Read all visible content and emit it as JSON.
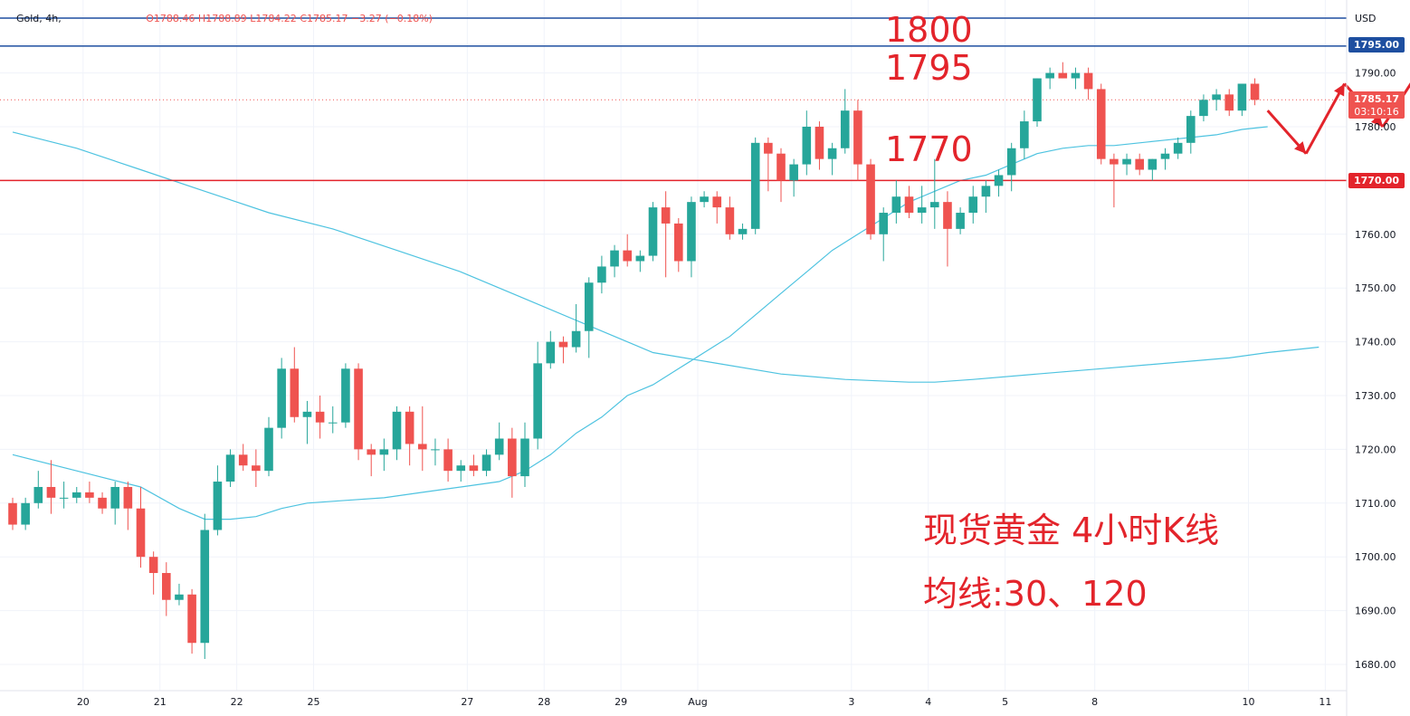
{
  "header": {
    "symbol": "Gold, 4h,",
    "open": "O1788.46",
    "high": "H1788.89",
    "low": "L1784.22",
    "close": "C1785.17",
    "change": "−3.27 (−0.18%)",
    "currency": "USD"
  },
  "annotations": {
    "level_1800": "1800",
    "level_1795": "1795",
    "level_1770": "1770",
    "caption_line1": "现货黄金 4小时K线",
    "caption_line2": "均线:30、120"
  },
  "price_badges": {
    "resistance": "1795.00",
    "current_price": "1785.17",
    "countdown": "03:10:16",
    "support": "1770.00"
  },
  "colors": {
    "up": "#26a69a",
    "down": "#ef5350",
    "ma": "#4ec3e0",
    "support_line": "#e3242b",
    "resistance_line": "#1e4fa0",
    "badge_blue": "#1e4fa0",
    "badge_red": "#e3242b",
    "annotation": "#e3242b"
  },
  "chart_data": {
    "type": "candlestick",
    "timeframe": "4h",
    "y_ticks": [
      1680,
      1690,
      1700,
      1710,
      1720,
      1730,
      1740,
      1750,
      1760,
      1770,
      1780,
      1790
    ],
    "ylim": [
      1676,
      1800
    ],
    "x_ticks": [
      {
        "label": "20",
        "bar": 5.5
      },
      {
        "label": "21",
        "bar": 11.5
      },
      {
        "label": "22",
        "bar": 17.5
      },
      {
        "label": "25",
        "bar": 23.5
      },
      {
        "label": "27",
        "bar": 35.5
      },
      {
        "label": "28",
        "bar": 41.5
      },
      {
        "label": "29",
        "bar": 47.5
      },
      {
        "label": "Aug",
        "bar": 53.5
      },
      {
        "label": "3",
        "bar": 65.5
      },
      {
        "label": "4",
        "bar": 71.5
      },
      {
        "label": "5",
        "bar": 77.5
      },
      {
        "label": "8",
        "bar": 84.5
      },
      {
        "label": "10",
        "bar": 96.5
      },
      {
        "label": "11",
        "bar": 102.5
      }
    ],
    "candles": [
      [
        1710,
        1711,
        1705,
        1706
      ],
      [
        1706,
        1711,
        1705,
        1710
      ],
      [
        1710,
        1716,
        1709,
        1713
      ],
      [
        1713,
        1718,
        1708,
        1711
      ],
      [
        1711,
        1714,
        1709,
        1711
      ],
      [
        1711,
        1713,
        1710,
        1712
      ],
      [
        1712,
        1714,
        1710,
        1711
      ],
      [
        1711,
        1712,
        1708,
        1709
      ],
      [
        1709,
        1714,
        1706,
        1713
      ],
      [
        1713,
        1714,
        1705,
        1709
      ],
      [
        1709,
        1713,
        1698,
        1700
      ],
      [
        1700,
        1701,
        1693,
        1697
      ],
      [
        1697,
        1699,
        1689,
        1692
      ],
      [
        1692,
        1695,
        1691,
        1693
      ],
      [
        1693,
        1694,
        1682,
        1684
      ],
      [
        1684,
        1708,
        1681,
        1705
      ],
      [
        1705,
        1717,
        1704,
        1714
      ],
      [
        1714,
        1720,
        1713,
        1719
      ],
      [
        1719,
        1721,
        1716,
        1717
      ],
      [
        1717,
        1720,
        1713,
        1716
      ],
      [
        1716,
        1726,
        1715,
        1724
      ],
      [
        1724,
        1737,
        1722,
        1735
      ],
      [
        1735,
        1739,
        1725,
        1726
      ],
      [
        1726,
        1729,
        1721,
        1727
      ],
      [
        1727,
        1730,
        1722,
        1725
      ],
      [
        1725,
        1728,
        1723,
        1725
      ],
      [
        1725,
        1736,
        1724,
        1735
      ],
      [
        1735,
        1736,
        1718,
        1720
      ],
      [
        1720,
        1721,
        1715,
        1719
      ],
      [
        1719,
        1722,
        1716,
        1720
      ],
      [
        1720,
        1728,
        1718,
        1727
      ],
      [
        1727,
        1728,
        1717,
        1721
      ],
      [
        1721,
        1728,
        1716,
        1720
      ],
      [
        1720,
        1722,
        1717,
        1720
      ],
      [
        1720,
        1722,
        1714,
        1716
      ],
      [
        1716,
        1718,
        1714,
        1717
      ],
      [
        1717,
        1719,
        1715,
        1716
      ],
      [
        1716,
        1720,
        1715,
        1719
      ],
      [
        1719,
        1725,
        1718,
        1722
      ],
      [
        1722,
        1724,
        1711,
        1715
      ],
      [
        1715,
        1725,
        1713,
        1722
      ],
      [
        1722,
        1740,
        1720,
        1736
      ],
      [
        1736,
        1742,
        1735,
        1740
      ],
      [
        1740,
        1741,
        1736,
        1739
      ],
      [
        1739,
        1747,
        1738,
        1742
      ],
      [
        1742,
        1752,
        1737,
        1751
      ],
      [
        1751,
        1756,
        1749,
        1754
      ],
      [
        1754,
        1758,
        1752,
        1757
      ],
      [
        1757,
        1760,
        1754,
        1755
      ],
      [
        1755,
        1757,
        1753,
        1756
      ],
      [
        1756,
        1766,
        1755,
        1765
      ],
      [
        1765,
        1768,
        1752,
        1762
      ],
      [
        1762,
        1763,
        1753,
        1755
      ],
      [
        1755,
        1767,
        1752,
        1766
      ],
      [
        1766,
        1768,
        1765,
        1767
      ],
      [
        1767,
        1768,
        1762,
        1765
      ],
      [
        1765,
        1767,
        1759,
        1760
      ],
      [
        1760,
        1762,
        1759,
        1761
      ],
      [
        1761,
        1778,
        1760,
        1777
      ],
      [
        1777,
        1778,
        1768,
        1775
      ],
      [
        1775,
        1776,
        1766,
        1770
      ],
      [
        1770,
        1774,
        1767,
        1773
      ],
      [
        1773,
        1783,
        1771,
        1780
      ],
      [
        1780,
        1781,
        1772,
        1774
      ],
      [
        1774,
        1777,
        1771,
        1776
      ],
      [
        1776,
        1787,
        1775,
        1783
      ],
      [
        1783,
        1785,
        1770,
        1773
      ],
      [
        1773,
        1774,
        1759,
        1760
      ],
      [
        1760,
        1765,
        1755,
        1764
      ],
      [
        1764,
        1770,
        1762,
        1767
      ],
      [
        1767,
        1769,
        1763,
        1764
      ],
      [
        1764,
        1769,
        1762,
        1765
      ],
      [
        1765,
        1774,
        1761,
        1766
      ],
      [
        1766,
        1768,
        1754,
        1761
      ],
      [
        1761,
        1765,
        1760,
        1764
      ],
      [
        1764,
        1769,
        1762,
        1767
      ],
      [
        1767,
        1770,
        1764,
        1769
      ],
      [
        1769,
        1772,
        1767,
        1771
      ],
      [
        1771,
        1777,
        1768,
        1776
      ],
      [
        1776,
        1783,
        1774,
        1781
      ],
      [
        1781,
        1789,
        1780,
        1789
      ],
      [
        1789,
        1791,
        1787,
        1790
      ],
      [
        1790,
        1792,
        1789,
        1789
      ],
      [
        1789,
        1791,
        1787,
        1790
      ],
      [
        1790,
        1791,
        1785,
        1787
      ],
      [
        1787,
        1788,
        1773,
        1774
      ],
      [
        1774,
        1775,
        1765,
        1773
      ],
      [
        1773,
        1775,
        1771,
        1774
      ],
      [
        1774,
        1775,
        1771,
        1772
      ],
      [
        1772,
        1774,
        1770,
        1774
      ],
      [
        1774,
        1776,
        1772,
        1775
      ],
      [
        1775,
        1778,
        1774,
        1777
      ],
      [
        1777,
        1783,
        1775,
        1782
      ],
      [
        1782,
        1786,
        1781,
        1785
      ],
      [
        1785,
        1787,
        1783,
        1786
      ],
      [
        1786,
        1787,
        1782,
        1783
      ],
      [
        1783,
        1788,
        1782,
        1788
      ],
      [
        1788,
        1789,
        1784,
        1785
      ]
    ],
    "ma30": [
      [
        0,
        1719
      ],
      [
        5,
        1716
      ],
      [
        10,
        1713
      ],
      [
        13,
        1709
      ],
      [
        15,
        1707
      ],
      [
        17,
        1707
      ],
      [
        19,
        1707.5
      ],
      [
        21,
        1709
      ],
      [
        23,
        1710
      ],
      [
        26,
        1710.5
      ],
      [
        29,
        1711
      ],
      [
        32,
        1712
      ],
      [
        35,
        1713
      ],
      [
        38,
        1714
      ],
      [
        40,
        1716
      ],
      [
        42,
        1719
      ],
      [
        44,
        1723
      ],
      [
        46,
        1726
      ],
      [
        48,
        1730
      ],
      [
        50,
        1732
      ],
      [
        52,
        1735
      ],
      [
        54,
        1738
      ],
      [
        56,
        1741
      ],
      [
        58,
        1745
      ],
      [
        60,
        1749
      ],
      [
        62,
        1753
      ],
      [
        64,
        1757
      ],
      [
        66,
        1760
      ],
      [
        68,
        1763
      ],
      [
        70,
        1766
      ],
      [
        72,
        1768
      ],
      [
        74,
        1770
      ],
      [
        76,
        1771
      ],
      [
        78,
        1773
      ],
      [
        80,
        1775
      ],
      [
        82,
        1776
      ],
      [
        84,
        1776.5
      ],
      [
        86,
        1776.5
      ],
      [
        88,
        1777
      ],
      [
        90,
        1777.5
      ],
      [
        92,
        1778
      ],
      [
        94,
        1778.5
      ],
      [
        96,
        1779.5
      ],
      [
        98,
        1780
      ]
    ],
    "ma120": [
      [
        0,
        1779
      ],
      [
        5,
        1776
      ],
      [
        10,
        1772
      ],
      [
        15,
        1768
      ],
      [
        20,
        1764
      ],
      [
        25,
        1761
      ],
      [
        30,
        1757
      ],
      [
        35,
        1753
      ],
      [
        40,
        1748
      ],
      [
        45,
        1743
      ],
      [
        50,
        1738
      ],
      [
        55,
        1736
      ],
      [
        60,
        1734
      ],
      [
        65,
        1733
      ],
      [
        70,
        1732.5
      ],
      [
        72,
        1732.5
      ],
      [
        75,
        1733
      ],
      [
        80,
        1734
      ],
      [
        85,
        1735
      ],
      [
        90,
        1736
      ],
      [
        95,
        1737
      ],
      [
        98,
        1738
      ],
      [
        102,
        1739
      ]
    ],
    "horizontal_levels": [
      1795,
      1770
    ],
    "forecast_path": [
      [
        98,
        1783
      ],
      [
        101,
        1775
      ],
      [
        104,
        1788
      ],
      [
        107,
        1780
      ],
      [
        110,
        1791
      ]
    ]
  }
}
